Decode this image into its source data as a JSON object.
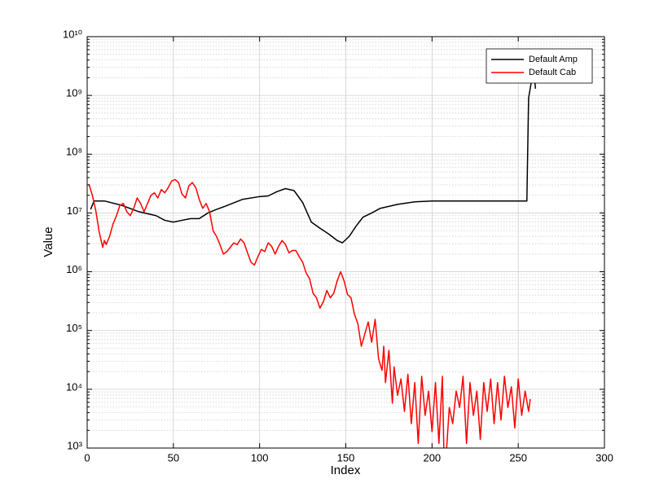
{
  "chart_data": {
    "type": "line",
    "log_y": true,
    "grid": true,
    "minor_grid": true,
    "legend": "upper right",
    "xlabel": "Index",
    "ylabel": "Value",
    "xlim": [
      0,
      300
    ],
    "xticks": [
      0,
      50,
      100,
      150,
      200,
      250,
      300
    ],
    "ylim": [
      1000,
      10000000000
    ],
    "yticks": [
      {
        "value": 1000,
        "label": "10³"
      },
      {
        "value": 10000,
        "label": "10⁴"
      },
      {
        "value": 100000,
        "label": "10⁵"
      },
      {
        "value": 1000000,
        "label": "10⁶"
      },
      {
        "value": 10000000,
        "label": "10⁷"
      },
      {
        "value": 100000000,
        "label": "10⁸"
      },
      {
        "value": 1000000000,
        "label": "10⁹"
      },
      {
        "value": 10000000000,
        "label": "10¹⁰"
      }
    ],
    "series": [
      {
        "name": "Default Amp",
        "color": "#000000",
        "x": [
          2,
          4,
          10,
          20,
          30,
          40,
          45,
          50,
          55,
          60,
          65,
          70,
          75,
          80,
          90,
          100,
          105,
          110,
          115,
          120,
          125,
          130,
          135,
          140,
          145,
          148,
          152,
          156,
          160,
          165,
          170,
          180,
          190,
          200,
          255,
          256,
          258,
          259,
          260
        ],
        "values": [
          11500000,
          16000000,
          16000000,
          13500000,
          10500000,
          9000000,
          7500000,
          7000000,
          7500000,
          8000000,
          8000000,
          10000000,
          11500000,
          13000000,
          17000000,
          19000000,
          19500000,
          23000000,
          26000000,
          24000000,
          15000000,
          7000000,
          5500000,
          4400000,
          3400000,
          3100000,
          4000000,
          6000000,
          8500000,
          10000000,
          12000000,
          14000000,
          15500000,
          16000000,
          16000000,
          900000000,
          2000000000,
          2800000000,
          1300000000
        ]
      },
      {
        "name": "Default Cab",
        "color": "#ff0000",
        "x": [
          1,
          3,
          5,
          7,
          9,
          10,
          11,
          13,
          15,
          17,
          19,
          21,
          23,
          25,
          27,
          29,
          31,
          33,
          35,
          37,
          39,
          41,
          43,
          45,
          47,
          49,
          51,
          53,
          55,
          57,
          59,
          61,
          63,
          65,
          67,
          69,
          71,
          73,
          75,
          77,
          79,
          81,
          83,
          85,
          87,
          89,
          91,
          93,
          95,
          97,
          99,
          101,
          103,
          105,
          107,
          109,
          111,
          113,
          115,
          117,
          119,
          121,
          123,
          125,
          127,
          129,
          131,
          133,
          135,
          137,
          139,
          141,
          143,
          145,
          147,
          149,
          151,
          153,
          155,
          157,
          159,
          161,
          163,
          165,
          167,
          169,
          171,
          172,
          173,
          175,
          177,
          178,
          180,
          182,
          184,
          186,
          188,
          190,
          192,
          194,
          196,
          198,
          200,
          202,
          204,
          206,
          207,
          208,
          210,
          212,
          214,
          216,
          218,
          220,
          222,
          224,
          226,
          228,
          230,
          232,
          234,
          236,
          238,
          240,
          242,
          244,
          246,
          248,
          250,
          252,
          254,
          256,
          257
        ],
        "values": [
          31000000,
          20000000,
          11000000,
          4700000,
          2600000,
          3400000,
          2900000,
          4000000,
          6500000,
          9000000,
          13500000,
          14500000,
          10500000,
          9000000,
          12000000,
          18000000,
          14500000,
          10500000,
          14500000,
          20000000,
          22000000,
          18000000,
          25000000,
          22000000,
          27000000,
          35000000,
          37000000,
          33000000,
          21000000,
          18000000,
          29000000,
          33000000,
          27000000,
          17000000,
          12000000,
          14500000,
          10500000,
          5000000,
          4000000,
          2900000,
          2000000,
          2200000,
          2600000,
          3100000,
          2900000,
          3600000,
          3100000,
          2100000,
          1450000,
          1300000,
          1800000,
          2400000,
          2200000,
          3100000,
          2700000,
          2000000,
          2700000,
          3400000,
          2900000,
          2100000,
          2300000,
          2300000,
          1800000,
          1450000,
          950000,
          760000,
          430000,
          360000,
          240000,
          310000,
          480000,
          360000,
          430000,
          700000,
          1000000,
          700000,
          410000,
          360000,
          190000,
          130000,
          54000,
          87000,
          140000,
          63000,
          155000,
          33000,
          21000,
          54000,
          13000,
          46000,
          5800,
          24000,
          7900,
          15000,
          4200,
          18000,
          2600,
          13000,
          1200,
          16600,
          3600,
          9300,
          1900,
          13000,
          1200,
          16600,
          600,
          600,
          4900,
          2600,
          9300,
          4900,
          16600,
          1200,
          13000,
          3600,
          9300,
          1400,
          13000,
          4200,
          15000,
          2600,
          13000,
          3000,
          16600,
          4900,
          11000,
          2200,
          15000,
          3600,
          9300,
          4200,
          6800
        ]
      }
    ]
  }
}
